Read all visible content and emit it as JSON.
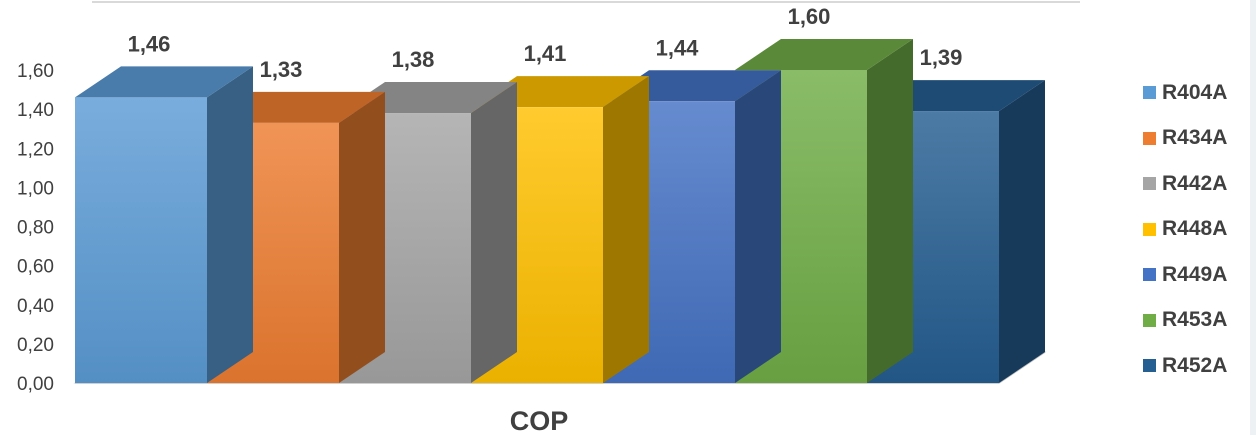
{
  "chart_data": {
    "type": "bar",
    "xlabel": "COP",
    "ylim": [
      0,
      1.6
    ],
    "yticks": [
      "0,00",
      "0,20",
      "0,40",
      "0,60",
      "0,80",
      "1,00",
      "1,20",
      "1,40",
      "1,60"
    ],
    "grid": false,
    "three_d": true,
    "legend_position": "right",
    "series": [
      {
        "name": "R404A",
        "value": 1.46,
        "label": "1,46",
        "color": "#5b9bd5"
      },
      {
        "name": "R434A",
        "value": 1.33,
        "label": "1,33",
        "color": "#ed7d31"
      },
      {
        "name": "R442A",
        "value": 1.38,
        "label": "1,38",
        "color": "#a5a5a5"
      },
      {
        "name": "R448A",
        "value": 1.41,
        "label": "1,41",
        "color": "#ffc000"
      },
      {
        "name": "R449A",
        "value": 1.44,
        "label": "1,44",
        "color": "#4472c4"
      },
      {
        "name": "R453A",
        "value": 1.6,
        "label": "1,60",
        "color": "#70ad47"
      },
      {
        "name": "R452A",
        "value": 1.39,
        "label": "1,39",
        "color": "#255e91"
      }
    ]
  }
}
